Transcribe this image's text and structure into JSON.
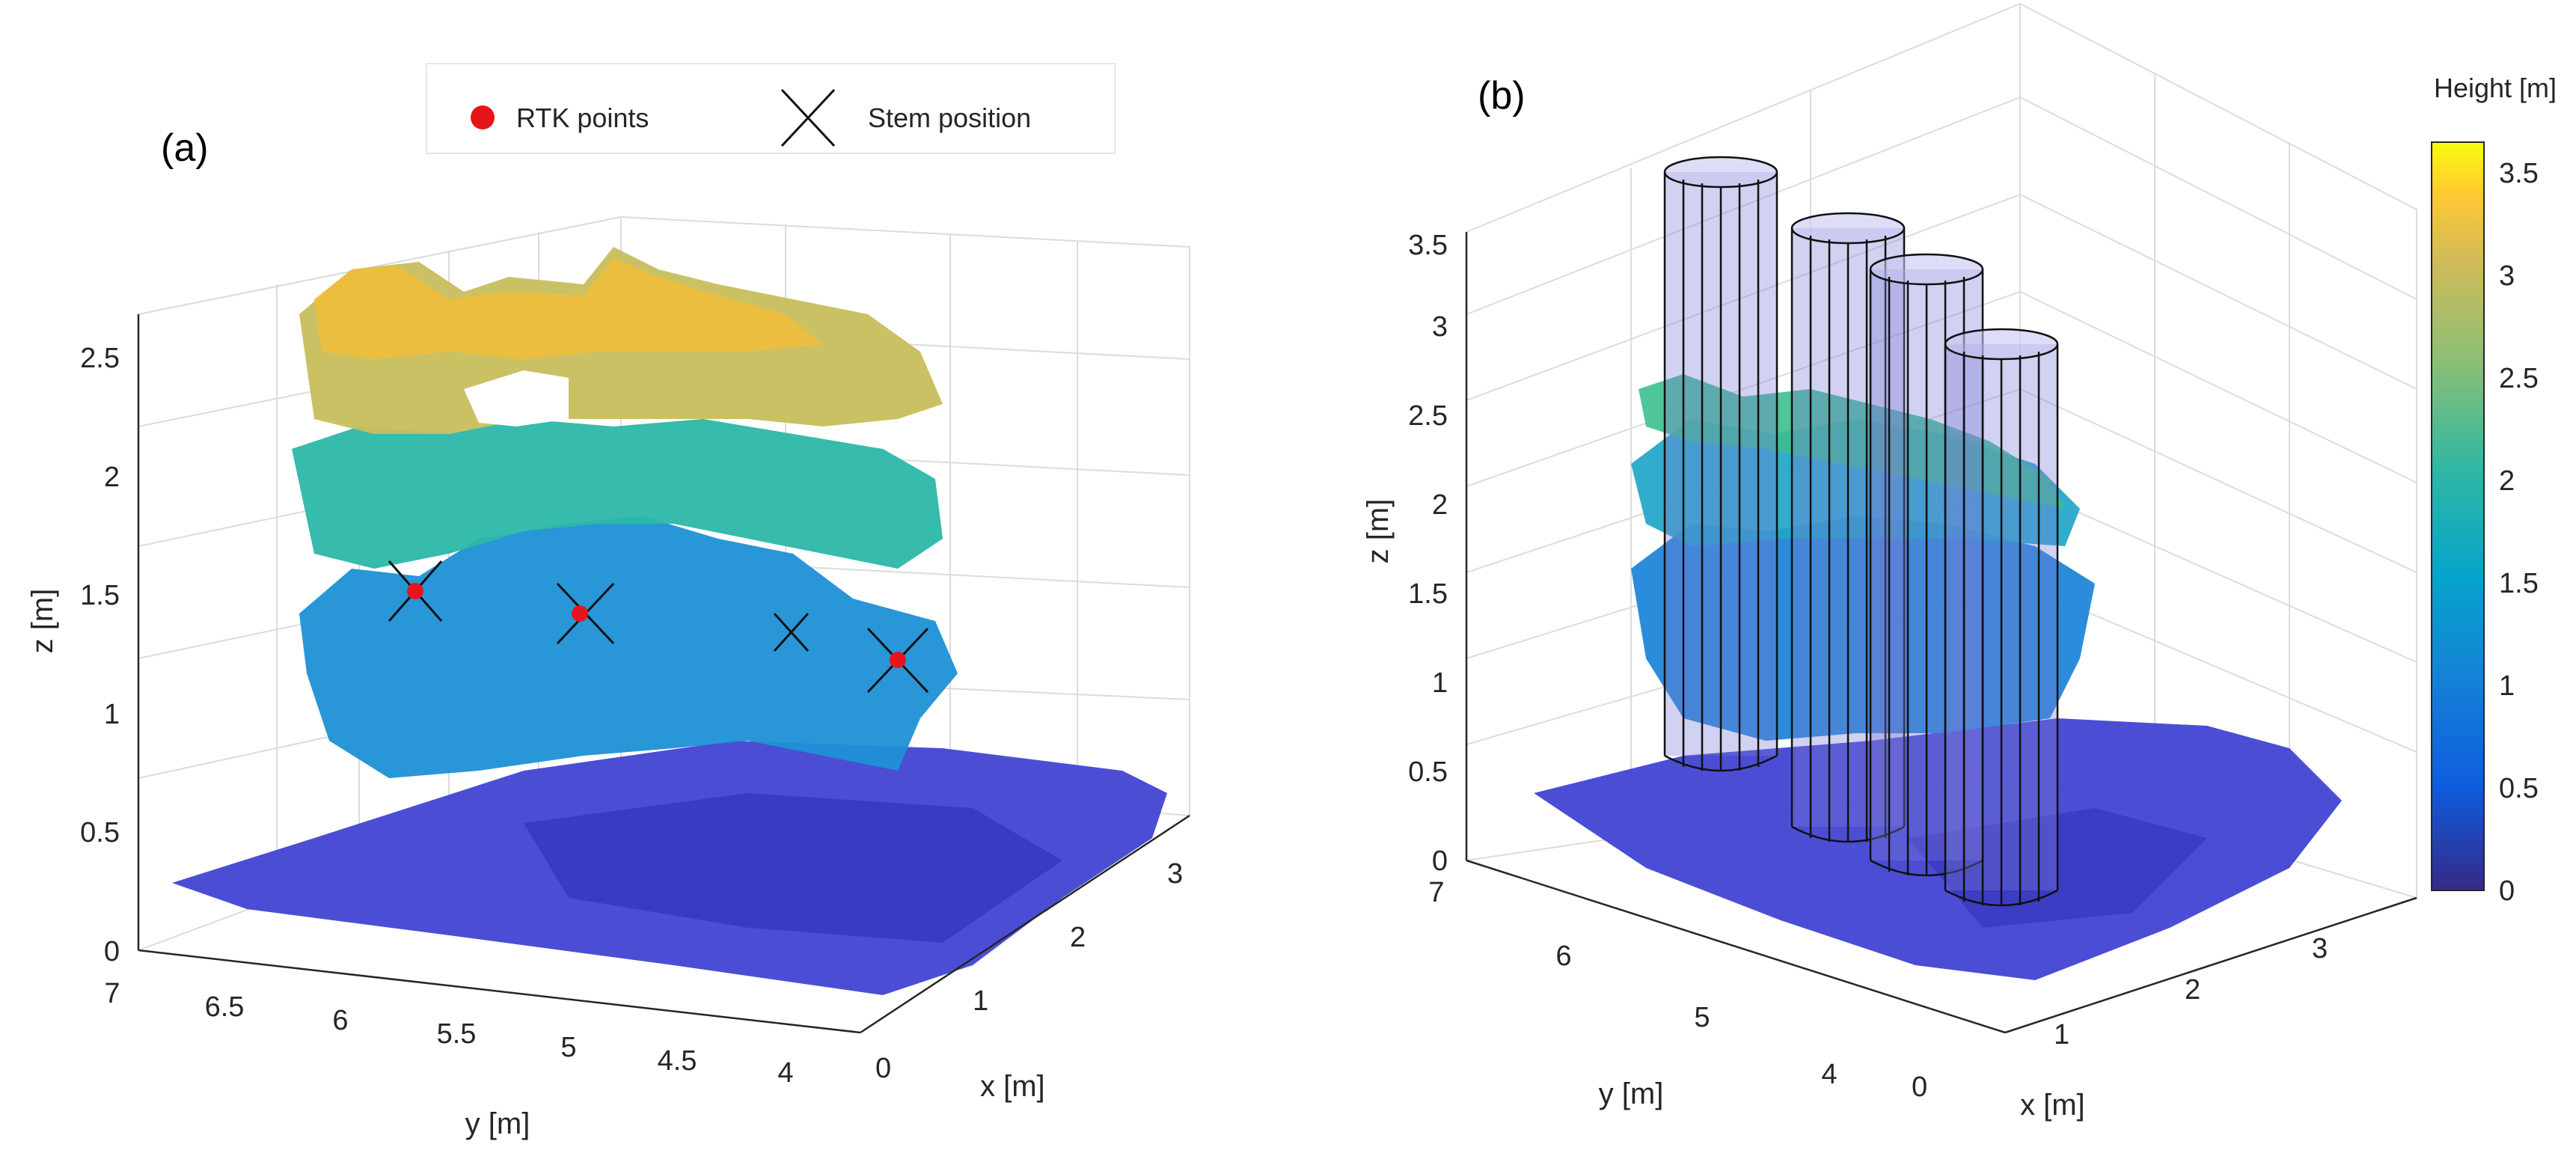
{
  "chart_data": [
    {
      "type": "scatter",
      "subtype": "3d-point-cloud",
      "panel_label": "(a)",
      "xlabel": "x [m]",
      "ylabel": "y [m]",
      "zlabel": "z [m]",
      "xlim": [
        -0.5,
        3.5
      ],
      "ylim": [
        4,
        7
      ],
      "zlim": [
        0,
        2.7
      ],
      "x_ticks": [
        "0",
        "1",
        "2",
        "3"
      ],
      "y_ticks": [
        "7",
        "6.5",
        "6",
        "5.5",
        "5",
        "4.5",
        "4"
      ],
      "z_ticks": [
        "0",
        "0.5",
        "1",
        "1.5",
        "2",
        "2.5"
      ],
      "colormap": "parula",
      "legend": {
        "position": "top-center",
        "entries": [
          {
            "label": "RTK points",
            "marker": "filled-circle",
            "color": "#e8141c"
          },
          {
            "label": "Stem position",
            "marker": "x",
            "color": "#000000"
          }
        ]
      },
      "rtk_points": [
        {
          "x": 0.3,
          "y": 6.3,
          "z": 1.45
        },
        {
          "x": 0.6,
          "y": 5.5,
          "z": 1.4
        },
        {
          "x": 1.5,
          "y": 4.6,
          "z": 1.2
        }
      ],
      "stem_positions": [
        {
          "x": 0.3,
          "y": 6.3,
          "z": 1.45
        },
        {
          "x": 0.6,
          "y": 5.5,
          "z": 1.4
        },
        {
          "x": 1.0,
          "y": 4.9,
          "z": 1.3
        },
        {
          "x": 1.5,
          "y": 4.6,
          "z": 1.2
        }
      ]
    },
    {
      "type": "scatter",
      "subtype": "3d-point-cloud-with-cylinders",
      "panel_label": "(b)",
      "xlabel": "x [m]",
      "ylabel": "y [m]",
      "zlabel": "z [m]",
      "xlim": [
        -0.5,
        3.5
      ],
      "ylim": [
        4,
        7
      ],
      "zlim": [
        0,
        3.6
      ],
      "x_ticks": [
        "0",
        "1",
        "2",
        "3"
      ],
      "y_ticks": [
        "7",
        "6",
        "5",
        "4"
      ],
      "z_ticks": [
        "0",
        "0.5",
        "1",
        "1.5",
        "2",
        "2.5",
        "3",
        "3.5"
      ],
      "colormap": "parula",
      "cylinders": [
        {
          "base_z": 0.6,
          "top_z": 3.6
        },
        {
          "base_z": 0.3,
          "top_z": 3.4
        },
        {
          "base_z": 0.1,
          "top_z": 3.3
        },
        {
          "base_z": 0.0,
          "top_z": 3.0
        }
      ],
      "colorbar": {
        "title": "Height [m]",
        "range": [
          0,
          3.65
        ],
        "ticks": [
          "0",
          "0.5",
          "1",
          "1.5",
          "2",
          "2.5",
          "3",
          "3.5"
        ]
      }
    }
  ]
}
